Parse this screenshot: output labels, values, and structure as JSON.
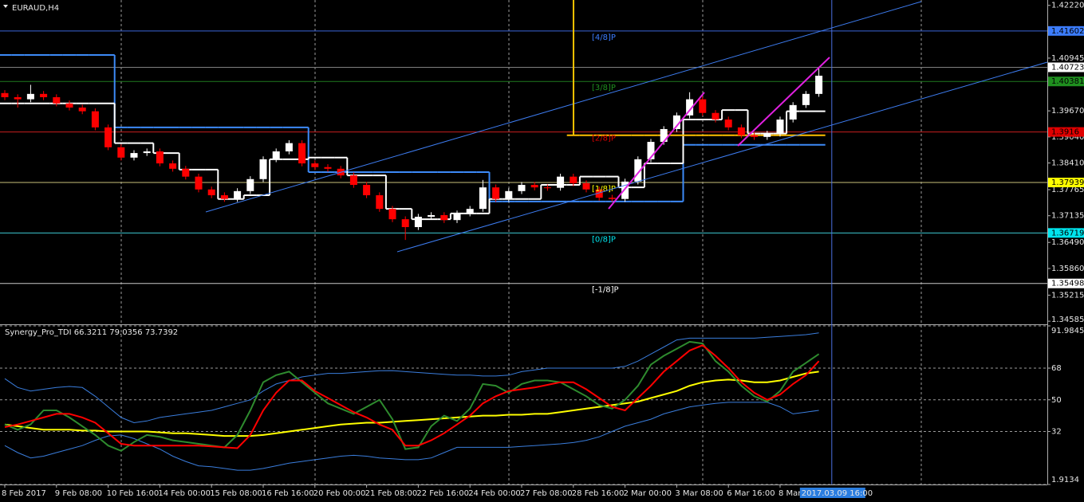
{
  "chart_data": [
    {
      "type": "candlestick",
      "title": "EURAUD,H4",
      "categories": [
        "8 Feb 2017",
        null,
        null,
        null,
        "9 Feb 08:00",
        null,
        null,
        null,
        "10 Feb 16:00",
        null,
        null,
        null,
        "14 Feb 00:00",
        null,
        null,
        null,
        "15 Feb 08:00",
        null,
        null,
        null,
        "16 Feb 16:00",
        null,
        null,
        null,
        "20 Feb 00:00",
        null,
        null,
        null,
        "21 Feb 08:00",
        null,
        null,
        null,
        "22 Feb 16:00",
        null,
        null,
        null,
        "24 Feb 00:00",
        null,
        null,
        null,
        "27 Feb 08:00",
        null,
        null,
        null,
        "28 Feb 16:00",
        null,
        null,
        null,
        "2 Mar 00:00",
        null,
        null,
        null,
        "3 Mar 08:00",
        null,
        null,
        null,
        "6 Mar 16:00",
        null,
        null,
        null,
        "8 Mar 00:00",
        null,
        null,
        null
      ],
      "candles": {
        "open": [
          1.401,
          1.4,
          1.3995,
          1.4008,
          1.4,
          1.3985,
          1.3975,
          1.3966,
          1.3927,
          1.3879,
          1.3854,
          1.3865,
          1.3869,
          1.384,
          1.3827,
          1.3808,
          1.3777,
          1.3763,
          1.3754,
          1.3773,
          1.3802,
          1.385,
          1.3869,
          1.3889,
          1.384,
          1.3831,
          1.3827,
          1.3811,
          1.3788,
          1.3763,
          1.373,
          1.3705,
          1.3686,
          1.3711,
          1.3715,
          1.3703,
          1.3719,
          1.373,
          1.3782,
          1.3754,
          1.3773,
          1.3788,
          1.3782,
          1.3781,
          1.3808,
          1.3792,
          1.3777,
          1.3757,
          1.3754,
          1.3796,
          1.385,
          1.3892,
          1.3923,
          1.3956,
          1.3995,
          1.3962,
          1.3946,
          1.3927,
          1.3908,
          1.3904,
          1.3912,
          1.3946,
          1.3981,
          1.4008
        ],
        "high": [
          1.4017,
          1.4007,
          1.403,
          1.4015,
          1.4007,
          1.3992,
          1.3982,
          1.3973,
          1.3934,
          1.3886,
          1.3872,
          1.3876,
          1.3876,
          1.3847,
          1.3834,
          1.3815,
          1.3784,
          1.377,
          1.378,
          1.3809,
          1.3857,
          1.3876,
          1.3896,
          1.3896,
          1.3847,
          1.3838,
          1.3834,
          1.3818,
          1.3795,
          1.377,
          1.3737,
          1.3712,
          1.3718,
          1.3722,
          1.3722,
          1.3726,
          1.3737,
          1.38,
          1.3789,
          1.378,
          1.3795,
          1.3795,
          1.3789,
          1.3815,
          1.3815,
          1.3799,
          1.3784,
          1.3764,
          1.3803,
          1.3857,
          1.3899,
          1.393,
          1.3963,
          1.4012,
          1.4002,
          1.3969,
          1.3953,
          1.3934,
          1.3915,
          1.3919,
          1.3953,
          1.3988,
          1.4015,
          1.407
        ],
        "low": [
          1.3993,
          1.3975,
          1.3988,
          1.3993,
          1.3978,
          1.3968,
          1.3959,
          1.392,
          1.3872,
          1.3847,
          1.3847,
          1.3858,
          1.3833,
          1.382,
          1.3801,
          1.377,
          1.3756,
          1.3747,
          1.3747,
          1.3766,
          1.3795,
          1.3843,
          1.3862,
          1.3833,
          1.3824,
          1.382,
          1.3804,
          1.3781,
          1.3756,
          1.3723,
          1.3698,
          1.3655,
          1.3679,
          1.3704,
          1.3696,
          1.3696,
          1.3712,
          1.3723,
          1.3747,
          1.3747,
          1.3766,
          1.3775,
          1.3774,
          1.3774,
          1.3785,
          1.377,
          1.375,
          1.3747,
          1.3747,
          1.3789,
          1.3843,
          1.3885,
          1.3916,
          1.3949,
          1.3955,
          1.3939,
          1.392,
          1.3901,
          1.3897,
          1.3897,
          1.3905,
          1.3939,
          1.3974,
          1.4001
        ],
        "close": [
          1.4,
          1.3995,
          1.4008,
          1.4,
          1.3985,
          1.3975,
          1.3966,
          1.3927,
          1.3879,
          1.3854,
          1.3865,
          1.3869,
          1.384,
          1.3827,
          1.3808,
          1.3777,
          1.3763,
          1.3754,
          1.3773,
          1.3802,
          1.385,
          1.3869,
          1.3889,
          1.384,
          1.3831,
          1.3827,
          1.3811,
          1.3788,
          1.3763,
          1.373,
          1.3705,
          1.3686,
          1.3711,
          1.3715,
          1.3703,
          1.3719,
          1.373,
          1.3782,
          1.3754,
          1.3773,
          1.3788,
          1.3782,
          1.3781,
          1.3808,
          1.3792,
          1.3777,
          1.3757,
          1.3754,
          1.3796,
          1.385,
          1.3892,
          1.3923,
          1.3956,
          1.3995,
          1.3962,
          1.3946,
          1.3927,
          1.3908,
          1.3904,
          1.3912,
          1.3946,
          1.3981,
          1.4008,
          1.4052
        ]
      },
      "up_color": "#ffffff",
      "down_color": "#ff0000",
      "series": [
        {
          "color": "#3d8af7",
          "style": "step",
          "values": [
            1.4102,
            1.4102,
            1.4102,
            1.4102,
            1.4102,
            1.4102,
            1.4102,
            1.4102,
            1.4102,
            1.3927,
            1.3927,
            1.3927,
            1.3927,
            1.3927,
            1.3927,
            1.3927,
            1.3927,
            1.3927,
            1.3927,
            1.3927,
            1.3927,
            1.3927,
            1.3927,
            1.3927,
            1.3819,
            1.3819,
            1.3819,
            1.3819,
            1.3819,
            1.3819,
            1.3819,
            1.3819,
            1.3819,
            1.3819,
            1.3819,
            1.3819,
            1.3819,
            1.3819,
            1.3748,
            1.3748,
            1.3748,
            1.3748,
            1.3748,
            1.3748,
            1.3748,
            1.3748,
            1.3748,
            1.3748,
            1.3748,
            1.3748,
            1.3748,
            1.3748,
            1.3748,
            1.3885,
            1.3885,
            1.3885,
            1.3885,
            1.3885,
            1.3885,
            1.3885,
            1.3885,
            1.3885,
            1.3885,
            1.3885
          ]
        },
        {
          "color": "#ffffff",
          "style": "step",
          "values": [
            1.3985,
            1.3985,
            1.3985,
            1.3985,
            1.3985,
            1.3985,
            1.3985,
            1.3985,
            1.3985,
            1.3889,
            1.3889,
            1.3889,
            1.3865,
            1.3865,
            1.3825,
            1.3825,
            1.3825,
            1.3754,
            1.3754,
            1.3763,
            1.3763,
            1.385,
            1.385,
            1.385,
            1.3854,
            1.3854,
            1.3854,
            1.3811,
            1.3811,
            1.3811,
            1.373,
            1.373,
            1.3705,
            1.3705,
            1.3705,
            1.3719,
            1.3719,
            1.3719,
            1.3754,
            1.3754,
            1.3754,
            1.3754,
            1.3788,
            1.3788,
            1.3788,
            1.3808,
            1.3808,
            1.3808,
            1.3782,
            1.3782,
            1.384,
            1.384,
            1.384,
            1.3946,
            1.3946,
            1.3946,
            1.3969,
            1.3969,
            1.3912,
            1.3912,
            1.3912,
            1.3966,
            1.3966,
            1.3966
          ]
        },
        {
          "color": "#ffc000",
          "style": "step",
          "values": [
            null,
            null,
            null,
            null,
            null,
            null,
            null,
            null,
            null,
            null,
            null,
            null,
            null,
            null,
            null,
            null,
            null,
            null,
            null,
            null,
            null,
            null,
            null,
            null,
            null,
            null,
            null,
            null,
            null,
            null,
            null,
            null,
            null,
            null,
            null,
            null,
            null,
            null,
            null,
            null,
            null,
            null,
            null,
            null,
            1.3908,
            1.3908,
            1.3908,
            1.3908,
            1.3908,
            1.3908,
            1.3908,
            1.3908,
            1.3908,
            1.3908,
            1.3908,
            1.3908,
            1.3908,
            1.3908,
            1.3908,
            1.3908,
            1.3908,
            1.3908,
            1.3908,
            1.3908
          ]
        }
      ],
      "levels": [
        {
          "price": 1.41602,
          "color": "#3a64d8",
          "label_color": "#3c7dff",
          "tag": "[4/8]P"
        },
        {
          "price": 1.40723,
          "color": "#7f7f7f",
          "label_color": "#ffffff"
        },
        {
          "price": 1.40381,
          "color": "#1f7a1f",
          "label_color": "#1f8f1f",
          "tag": "[3/8]P"
        },
        {
          "price": 1.3916,
          "color": "#c81e1e",
          "label_color": "#e00000",
          "tag": "[2/8]P"
        },
        {
          "price": 1.37939,
          "color": "#c8c07a",
          "label_color": "#ffff00",
          "tag": "[1/8]P"
        },
        {
          "price": 1.36719,
          "color": "#3cc8d2",
          "label_color": "#00e5ee",
          "tag": "[0/8]P"
        },
        {
          "price": 1.35498,
          "color": "#c8c8c8",
          "label_color": "#ffffff",
          "tag": "[-1/8]P"
        }
      ],
      "cursor_label": "2017.03.09 16:00",
      "ylim": [
        1.3451,
        1.4235
      ],
      "yticks": [
        {
          "value": 1.4222,
          "label": "1.42220"
        },
        1.40945,
        {
          "value": 1.3967,
          "label": "1.39670"
        },
        {
          "value": 1.3904,
          "label": "1.39040"
        },
        {
          "value": 1.3841,
          "label": "1.38410"
        },
        1.37765,
        1.37135,
        {
          "value": 1.3649,
          "label": "1.36490"
        },
        {
          "value": 1.3586,
          "label": "1.35860"
        },
        1.35215,
        1.34585
      ],
      "grid": true
    },
    {
      "type": "line",
      "title": "Synergy_Pro_TDI 66.3211 79.0356 73.7392",
      "series": [
        {
          "color": "#3a7ddc",
          "width": 1,
          "values": [
            62,
            57,
            55,
            56,
            57,
            57.6,
            57,
            52,
            46,
            40,
            37,
            38,
            40,
            41,
            42,
            43,
            44,
            46,
            48,
            50,
            55,
            59,
            61,
            63,
            64,
            65,
            65,
            65.5,
            66,
            66.5,
            66.6,
            66,
            65.5,
            65,
            64.5,
            64,
            64,
            63.5,
            63.5,
            64,
            66,
            67,
            68,
            68,
            68,
            68,
            68,
            68,
            69,
            72,
            76,
            80,
            84,
            85,
            85,
            85,
            85,
            85,
            85,
            85.5,
            86,
            86.5,
            87,
            88
          ]
        },
        {
          "color": "#3a7ddc",
          "width": 1,
          "values": [
            24,
            20,
            17,
            18,
            20,
            22,
            24,
            27,
            29.5,
            30,
            28,
            25,
            22,
            18,
            15,
            12.5,
            12,
            11,
            10,
            10,
            11,
            12.5,
            14,
            15,
            16,
            17,
            18,
            18.5,
            18,
            17,
            16.5,
            16,
            16,
            17,
            20,
            23,
            23,
            23,
            23,
            23,
            23.5,
            24,
            24.5,
            25,
            25.7,
            27,
            29,
            32,
            35,
            37,
            39,
            42,
            44,
            46,
            47,
            48,
            48.6,
            48.6,
            48.6,
            48.6,
            46,
            42,
            43,
            44
          ]
        },
        {
          "color": "#ffff00",
          "width": 2,
          "values": [
            36,
            35,
            34,
            33,
            33,
            33,
            32.5,
            32.5,
            32,
            32,
            32,
            32,
            31.5,
            31,
            31,
            30.5,
            30,
            29.5,
            29.5,
            29.5,
            30,
            31,
            32,
            33,
            34,
            35,
            36,
            36.5,
            37,
            37,
            37.5,
            38,
            38.5,
            39,
            39.5,
            40,
            40.5,
            41,
            41,
            41.5,
            41.5,
            42,
            42,
            43,
            44,
            45,
            46,
            47,
            48,
            49,
            51,
            53,
            55,
            58,
            60,
            61,
            61.5,
            61,
            60,
            60,
            61,
            63,
            65,
            66
          ]
        },
        {
          "color": "#2e8b2e",
          "width": 2,
          "values": [
            36,
            33,
            36,
            44,
            44,
            40,
            35,
            30,
            24,
            21,
            26,
            30,
            29,
            27,
            26,
            25,
            24,
            23,
            30,
            44,
            60,
            64,
            66,
            60,
            54,
            48,
            45,
            42,
            46,
            50,
            39,
            22,
            23,
            35,
            41,
            38,
            45,
            59,
            58,
            54,
            59,
            61,
            61,
            60,
            56,
            52,
            47,
            45,
            50,
            58,
            70,
            75,
            79,
            83,
            82,
            72,
            66,
            58,
            52,
            49,
            55,
            66,
            71,
            76
          ]
        },
        {
          "color": "#ff0000",
          "width": 2,
          "values": [
            34.5,
            36,
            38,
            40,
            42,
            42,
            40,
            37,
            31,
            25,
            24,
            24,
            24,
            24,
            24,
            24,
            23.5,
            23,
            22.5,
            30,
            44,
            54,
            61,
            61,
            55,
            51,
            47,
            43,
            40,
            36,
            33,
            24,
            24,
            27,
            31,
            36,
            41,
            48,
            52,
            55,
            56,
            57,
            58.5,
            60,
            60,
            56,
            51,
            46,
            44,
            51,
            58,
            66,
            72,
            78,
            81,
            75,
            68,
            60,
            54,
            50,
            53,
            59,
            64,
            72
          ]
        }
      ],
      "ylim": [
        1.9134,
        91.9845
      ],
      "yticks": [
        91.9845,
        68,
        50,
        32,
        1.9134
      ],
      "grid": true
    }
  ]
}
